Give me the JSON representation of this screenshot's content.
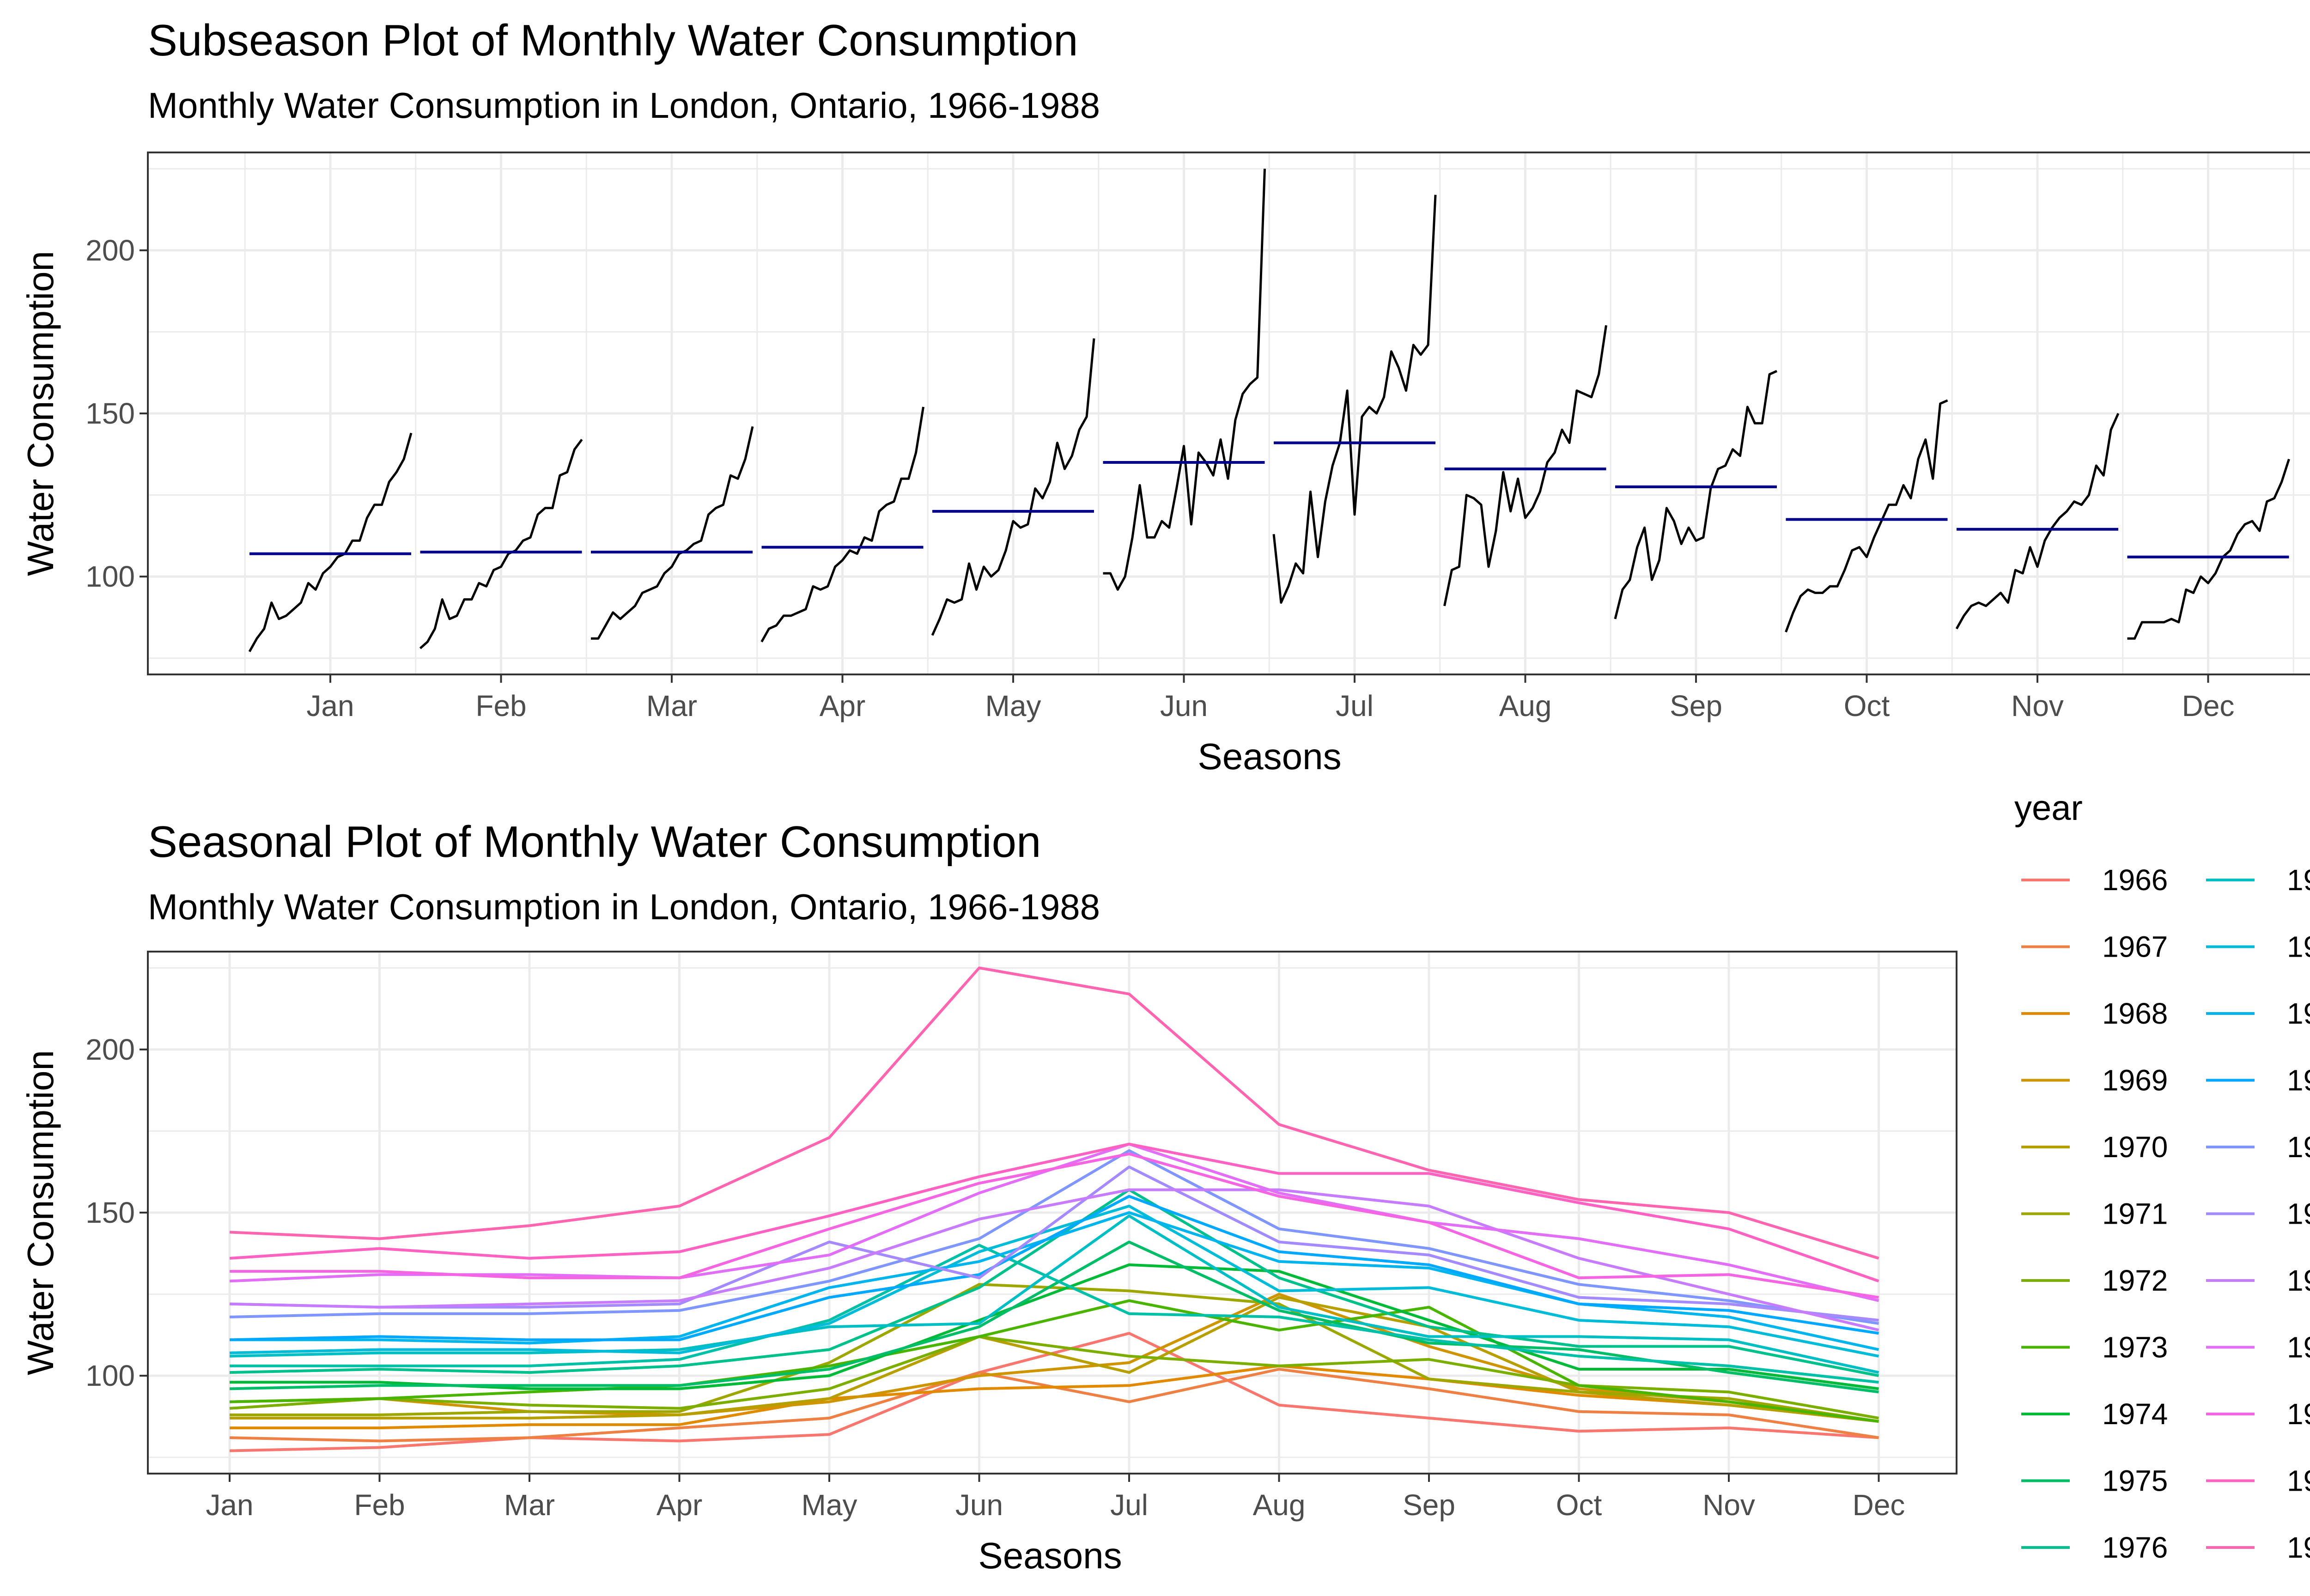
{
  "top_chart": {
    "title": "Subseason Plot of Monthly Water Consumption",
    "subtitle": "Monthly Water Consumption in London, Ontario, 1966-1988",
    "xlabel": "Seasons",
    "ylabel": "Water Consumption"
  },
  "bottom_chart": {
    "title": "Seasonal Plot of Monthly Water Consumption",
    "subtitle": "Monthly Water Consumption in London, Ontario, 1966-1988",
    "xlabel": "Seasons",
    "ylabel": "Water Consumption"
  },
  "legend": {
    "title": "year"
  },
  "colors": {
    "series_line": "#000000",
    "mean_line": "#00008B",
    "panel_border": "#333333",
    "grid": "#ebebeb"
  },
  "chart_data": [
    {
      "type": "line",
      "variant": "subseries",
      "title": "Subseason Plot of Monthly Water Consumption",
      "subtitle": "Monthly Water Consumption in London, Ontario, 1966-1988",
      "xlabel": "Seasons",
      "ylabel": "Water Consumption",
      "categories": [
        "Jan",
        "Feb",
        "Mar",
        "Apr",
        "May",
        "Jun",
        "Jul",
        "Aug",
        "Sep",
        "Oct",
        "Nov",
        "Dec"
      ],
      "ylim": [
        70,
        230
      ],
      "yticks": [
        100,
        150,
        200
      ],
      "grid": true,
      "monthly_means": [
        107,
        107.5,
        107.5,
        109,
        120,
        135,
        141,
        133,
        127.5,
        117.5,
        114.5,
        106
      ]
    },
    {
      "type": "line",
      "variant": "seasonal",
      "title": "Seasonal Plot of Monthly Water Consumption",
      "subtitle": "Monthly Water Consumption in London, Ontario, 1966-1988",
      "xlabel": "Seasons",
      "ylabel": "Water Consumption",
      "categories": [
        "Jan",
        "Feb",
        "Mar",
        "Apr",
        "May",
        "Jun",
        "Jul",
        "Aug",
        "Sep",
        "Oct",
        "Nov",
        "Dec"
      ],
      "ylim": [
        70,
        230
      ],
      "yticks": [
        100,
        150,
        200
      ],
      "grid": true,
      "legend_title": "year",
      "legend_position": "right",
      "series": [
        {
          "name": "1966",
          "color": "#F8766D",
          "values": [
            77,
            78,
            81,
            80,
            82,
            101,
            113,
            91,
            87,
            83,
            84,
            81
          ]
        },
        {
          "name": "1967",
          "color": "#EE8044",
          "values": [
            81,
            80,
            81,
            84,
            87,
            101,
            92,
            102,
            96,
            89,
            88,
            81
          ]
        },
        {
          "name": "1968",
          "color": "#E18A00",
          "values": [
            84,
            84,
            85,
            85,
            93,
            96,
            97,
            103,
            99,
            94,
            91,
            86
          ]
        },
        {
          "name": "1969",
          "color": "#CE9500",
          "values": [
            92,
            93,
            89,
            88,
            92,
            100,
            104,
            125,
            109,
            96,
            92,
            86
          ]
        },
        {
          "name": "1970",
          "color": "#B79F00",
          "values": [
            87,
            87,
            87,
            88,
            93,
            112,
            101,
            124,
            115,
            95,
            91,
            86
          ]
        },
        {
          "name": "1971",
          "color": "#9DA700",
          "values": [
            88,
            88,
            89,
            89,
            104,
            128,
            126,
            122,
            99,
            95,
            93,
            86
          ]
        },
        {
          "name": "1972",
          "color": "#7CAE00",
          "values": [
            90,
            93,
            91,
            90,
            96,
            112,
            106,
            103,
            105,
            97,
            95,
            87
          ]
        },
        {
          "name": "1973",
          "color": "#49B500",
          "values": [
            92,
            93,
            95,
            97,
            103,
            112,
            123,
            114,
            121,
            97,
            92,
            86
          ]
        },
        {
          "name": "1974",
          "color": "#00BA38",
          "values": [
            98,
            98,
            96,
            96,
            100,
            117,
            134,
            132,
            117,
            102,
            102,
            96
          ]
        },
        {
          "name": "1975",
          "color": "#00BE67",
          "values": [
            96,
            97,
            97,
            97,
            102,
            115,
            141,
            120,
            110,
            108,
            101,
            95
          ]
        },
        {
          "name": "1976",
          "color": "#00C08B",
          "values": [
            101,
            102,
            101,
            103,
            108,
            127,
            157,
            130,
            115,
            109,
            109,
            100
          ]
        },
        {
          "name": "1977",
          "color": "#00C1A7",
          "values": [
            103,
            103,
            103,
            105,
            117,
            140,
            119,
            118,
            111,
            106,
            103,
            98
          ]
        },
        {
          "name": "1978",
          "color": "#00BFC4",
          "values": [
            106,
            107,
            107,
            108,
            115,
            116,
            149,
            121,
            112,
            112,
            111,
            101
          ]
        },
        {
          "name": "1979",
          "color": "#00BCD8",
          "values": [
            107,
            108,
            108,
            107,
            116,
            138,
            152,
            126,
            127,
            117,
            115,
            106
          ]
        },
        {
          "name": "1980",
          "color": "#00B5EE",
          "values": [
            111,
            111,
            110,
            112,
            127,
            135,
            150,
            135,
            133,
            122,
            118,
            108
          ]
        },
        {
          "name": "1981",
          "color": "#00A9FF",
          "values": [
            111,
            112,
            111,
            111,
            124,
            131,
            155,
            138,
            134,
            122,
            120,
            113
          ]
        },
        {
          "name": "1982",
          "color": "#7F96FF",
          "values": [
            118,
            119,
            119,
            120,
            129,
            142,
            169,
            145,
            139,
            128,
            123,
            116
          ]
        },
        {
          "name": "1983",
          "color": "#A58AFF",
          "values": [
            122,
            121,
            121,
            122,
            141,
            130,
            164,
            141,
            137,
            124,
            122,
            117
          ]
        },
        {
          "name": "1984",
          "color": "#C77CFF",
          "values": [
            122,
            121,
            122,
            123,
            133,
            148,
            157,
            157,
            152,
            136,
            125,
            114
          ]
        },
        {
          "name": "1985",
          "color": "#E26EF7",
          "values": [
            129,
            131,
            131,
            130,
            137,
            156,
            171,
            156,
            147,
            142,
            134,
            123
          ]
        },
        {
          "name": "1986",
          "color": "#F564E3",
          "values": [
            132,
            132,
            130,
            130,
            145,
            159,
            168,
            155,
            147,
            130,
            131,
            124
          ]
        },
        {
          "name": "1987",
          "color": "#FF61C3",
          "values": [
            136,
            139,
            136,
            138,
            149,
            161,
            171,
            162,
            162,
            153,
            145,
            129
          ]
        },
        {
          "name": "1988",
          "color": "#FF64B0",
          "values": [
            144,
            142,
            146,
            152,
            173,
            225,
            217,
            177,
            163,
            154,
            150,
            136
          ]
        }
      ]
    }
  ]
}
